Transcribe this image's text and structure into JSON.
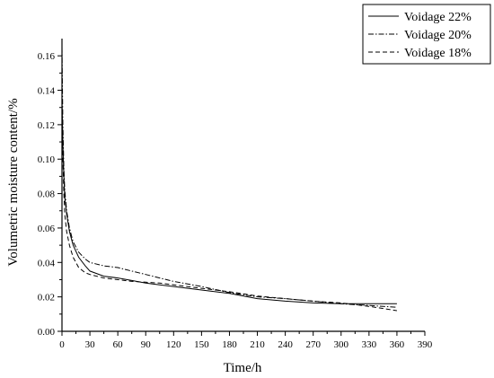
{
  "chart_data": {
    "type": "line",
    "xlabel": "Time/h",
    "ylabel": "Volumetric moisture content/%",
    "xlim": [
      0,
      390
    ],
    "ylim": [
      0,
      0.17
    ],
    "xticks": [
      0,
      30,
      60,
      90,
      120,
      150,
      180,
      210,
      240,
      270,
      300,
      330,
      360,
      390
    ],
    "yticks": [
      "0.00",
      "0.02",
      "0.04",
      "0.06",
      "0.08",
      "0.10",
      "0.12",
      "0.14",
      "0.16"
    ],
    "grid": false,
    "legend_position": "top-right",
    "series": [
      {
        "name": "Voidage 22%",
        "style": "solid",
        "points": [
          [
            0,
            0.135
          ],
          [
            1,
            0.108
          ],
          [
            2,
            0.09
          ],
          [
            3,
            0.078
          ],
          [
            5,
            0.068
          ],
          [
            8,
            0.058
          ],
          [
            12,
            0.05
          ],
          [
            18,
            0.043
          ],
          [
            25,
            0.038
          ],
          [
            30,
            0.035
          ],
          [
            45,
            0.032
          ],
          [
            60,
            0.031
          ],
          [
            75,
            0.0295
          ],
          [
            90,
            0.028
          ],
          [
            105,
            0.027
          ],
          [
            120,
            0.026
          ],
          [
            150,
            0.024
          ],
          [
            180,
            0.022
          ],
          [
            210,
            0.019
          ],
          [
            240,
            0.0175
          ],
          [
            270,
            0.0165
          ],
          [
            300,
            0.016
          ],
          [
            330,
            0.016
          ],
          [
            360,
            0.016
          ]
        ]
      },
      {
        "name": "Voidage 20%",
        "style": "dashdot",
        "points": [
          [
            0,
            0.165
          ],
          [
            1,
            0.12
          ],
          [
            2,
            0.095
          ],
          [
            3,
            0.082
          ],
          [
            5,
            0.07
          ],
          [
            8,
            0.06
          ],
          [
            12,
            0.052
          ],
          [
            18,
            0.046
          ],
          [
            25,
            0.042
          ],
          [
            30,
            0.04
          ],
          [
            45,
            0.038
          ],
          [
            60,
            0.037
          ],
          [
            75,
            0.035
          ],
          [
            90,
            0.033
          ],
          [
            105,
            0.031
          ],
          [
            120,
            0.029
          ],
          [
            150,
            0.026
          ],
          [
            180,
            0.0225
          ],
          [
            210,
            0.02
          ],
          [
            240,
            0.019
          ],
          [
            270,
            0.0175
          ],
          [
            300,
            0.016
          ],
          [
            330,
            0.015
          ],
          [
            360,
            0.014
          ]
        ]
      },
      {
        "name": "Voidage 18%",
        "style": "dashed",
        "points": [
          [
            0,
            0.13
          ],
          [
            1,
            0.1
          ],
          [
            2,
            0.08
          ],
          [
            3,
            0.068
          ],
          [
            5,
            0.058
          ],
          [
            8,
            0.05
          ],
          [
            12,
            0.043
          ],
          [
            18,
            0.037
          ],
          [
            25,
            0.034
          ],
          [
            30,
            0.033
          ],
          [
            45,
            0.031
          ],
          [
            60,
            0.03
          ],
          [
            75,
            0.029
          ],
          [
            90,
            0.0285
          ],
          [
            105,
            0.028
          ],
          [
            120,
            0.027
          ],
          [
            150,
            0.025
          ],
          [
            180,
            0.023
          ],
          [
            210,
            0.0205
          ],
          [
            240,
            0.019
          ],
          [
            270,
            0.0175
          ],
          [
            300,
            0.0165
          ],
          [
            330,
            0.0145
          ],
          [
            360,
            0.012
          ]
        ]
      }
    ]
  }
}
